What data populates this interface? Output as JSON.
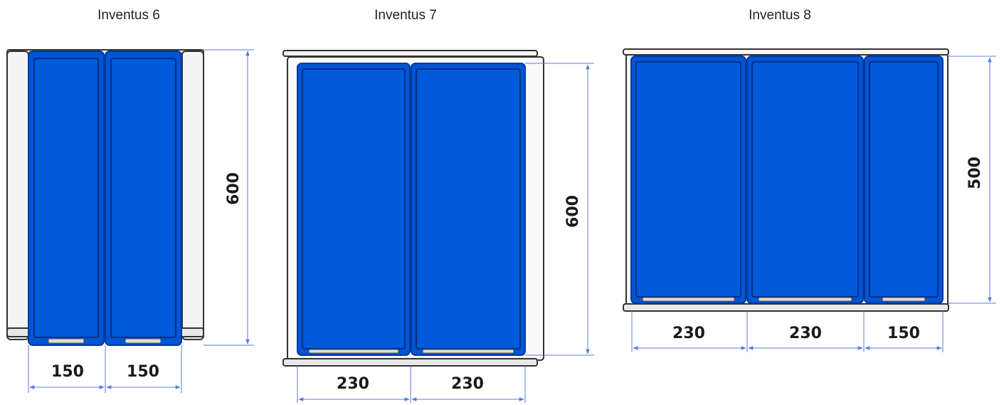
{
  "colors": {
    "bin_fill": "#0055d4",
    "bin_stroke": "#003a9a",
    "frame_stroke": "#333333",
    "frame_fill": "#f4f4f4",
    "dimension_line": "#5a78e0",
    "text": "#1a1a1a"
  },
  "units": [
    {
      "title": "Inventus 6",
      "width_labels": [
        "150",
        "150"
      ],
      "height_label": "600"
    },
    {
      "title": "Inventus 7",
      "width_labels": [
        "230",
        "230"
      ],
      "height_label": "600"
    },
    {
      "title": "Inventus 8",
      "width_labels": [
        "230",
        "230",
        "150"
      ],
      "height_label": "500"
    }
  ]
}
